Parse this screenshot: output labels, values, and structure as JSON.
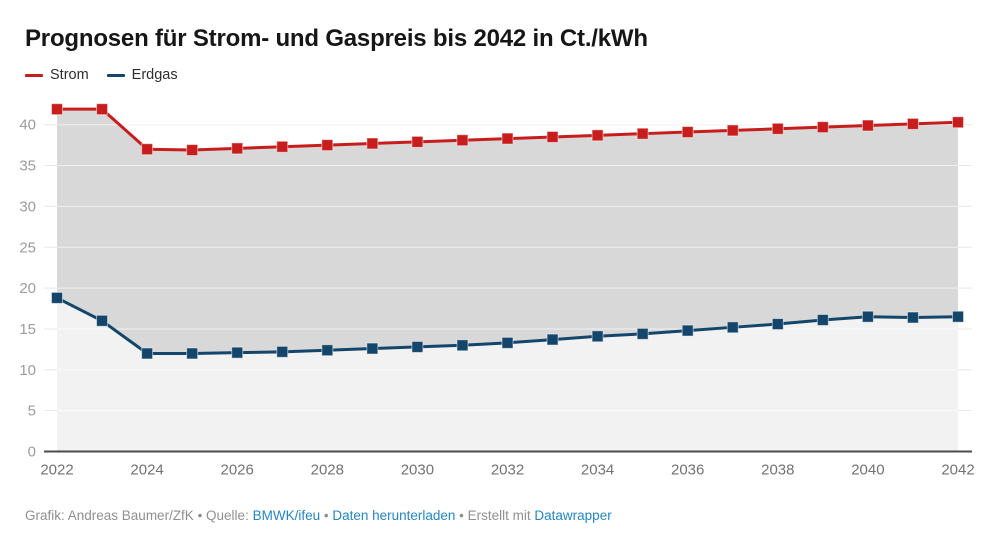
{
  "header": {
    "title": "Prognosen für Strom- und Gaspreis bis 2042 in Ct./kWh"
  },
  "legend": {
    "items": [
      {
        "label": "Strom",
        "color": "#c71e1d"
      },
      {
        "label": "Erdgas",
        "color": "#14466b"
      }
    ]
  },
  "footer": {
    "parts": [
      {
        "text": "Grafik: Andreas Baumer/ZfK • Quelle: ",
        "link": false,
        "name": "credit-source-text"
      },
      {
        "text": "BMWK/ifeu",
        "link": true,
        "name": "source-link"
      },
      {
        "text": " • ",
        "link": false,
        "name": "separator-dot"
      },
      {
        "text": "Daten herunterladen",
        "link": true,
        "name": "download-data-link"
      },
      {
        "text": " • Erstellt mit ",
        "link": false,
        "name": "created-with-text"
      },
      {
        "text": "Datawrapper",
        "link": true,
        "name": "datawrapper-link"
      }
    ],
    "link_color": "#2287c8",
    "text_color": "#909090"
  },
  "chart_data": {
    "type": "line",
    "title": "Prognosen für Strom- und Gaspreis bis 2042 in Ct./kWh",
    "unit": "Ct./kWh",
    "x": [
      2022,
      2023,
      2024,
      2025,
      2026,
      2027,
      2028,
      2029,
      2030,
      2031,
      2032,
      2033,
      2034,
      2035,
      2036,
      2037,
      2038,
      2039,
      2040,
      2041,
      2042
    ],
    "series": [
      {
        "name": "Strom",
        "color": "#c71e1d",
        "values": [
          41.9,
          41.9,
          37.0,
          36.9,
          37.1,
          37.3,
          37.5,
          37.7,
          37.9,
          38.1,
          38.3,
          38.5,
          38.7,
          38.9,
          39.1,
          39.3,
          39.5,
          39.7,
          39.9,
          40.1,
          40.3
        ]
      },
      {
        "name": "Erdgas",
        "color": "#14466b",
        "values": [
          18.8,
          16.0,
          12.0,
          12.0,
          12.1,
          12.2,
          12.4,
          12.6,
          12.8,
          13.0,
          13.3,
          13.7,
          14.1,
          14.4,
          14.8,
          15.2,
          15.6,
          16.1,
          16.5,
          16.4,
          16.5
        ]
      }
    ],
    "ylim": [
      0,
      44
    ],
    "y_ticks": [
      0,
      5,
      10,
      15,
      20,
      25,
      30,
      35,
      40
    ],
    "x_ticks": [
      2022,
      2024,
      2026,
      2028,
      2030,
      2032,
      2034,
      2036,
      2038,
      2040,
      2042
    ],
    "grid": true,
    "legend_position": "top-left",
    "marker": "square",
    "fill_between_color": "#d8d8d8",
    "fill_below_color": "#f2f2f2",
    "grid_color": "#e8e8e8",
    "baseline_color": "#4b4b4b",
    "axis_text_color": "#9c9c9c",
    "x_axis_text_color": "#737373"
  }
}
